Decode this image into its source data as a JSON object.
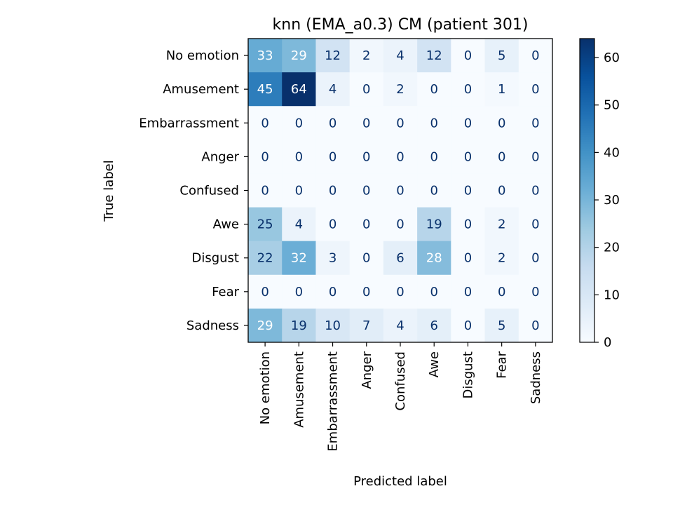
{
  "chart_data": {
    "type": "heatmap",
    "title": "knn (EMA_a0.3) CM (patient 301)",
    "xlabel": "Predicted label",
    "ylabel": "True label",
    "row_labels": [
      "No emotion",
      "Amusement",
      "Embarrassment",
      "Anger",
      "Confused",
      "Awe",
      "Disgust",
      "Fear",
      "Sadness"
    ],
    "col_labels": [
      "No emotion",
      "Amusement",
      "Embarrassment",
      "Anger",
      "Confused",
      "Awe",
      "Disgust",
      "Fear",
      "Sadness"
    ],
    "values": [
      [
        33,
        29,
        12,
        2,
        4,
        12,
        0,
        5,
        0
      ],
      [
        45,
        64,
        4,
        0,
        2,
        0,
        0,
        1,
        0
      ],
      [
        0,
        0,
        0,
        0,
        0,
        0,
        0,
        0,
        0
      ],
      [
        0,
        0,
        0,
        0,
        0,
        0,
        0,
        0,
        0
      ],
      [
        0,
        0,
        0,
        0,
        0,
        0,
        0,
        0,
        0
      ],
      [
        25,
        4,
        0,
        0,
        0,
        19,
        0,
        2,
        0
      ],
      [
        22,
        32,
        3,
        0,
        6,
        28,
        0,
        2,
        0
      ],
      [
        0,
        0,
        0,
        0,
        0,
        0,
        0,
        0,
        0
      ],
      [
        29,
        19,
        10,
        7,
        4,
        6,
        0,
        5,
        0
      ]
    ],
    "colorbar": {
      "range": [
        0,
        64
      ],
      "ticks": [
        0,
        10,
        20,
        30,
        40,
        50,
        60
      ],
      "colormap": "Blues",
      "low_color": "#f7fbff",
      "high_color": "#08306b"
    },
    "grid": false
  }
}
